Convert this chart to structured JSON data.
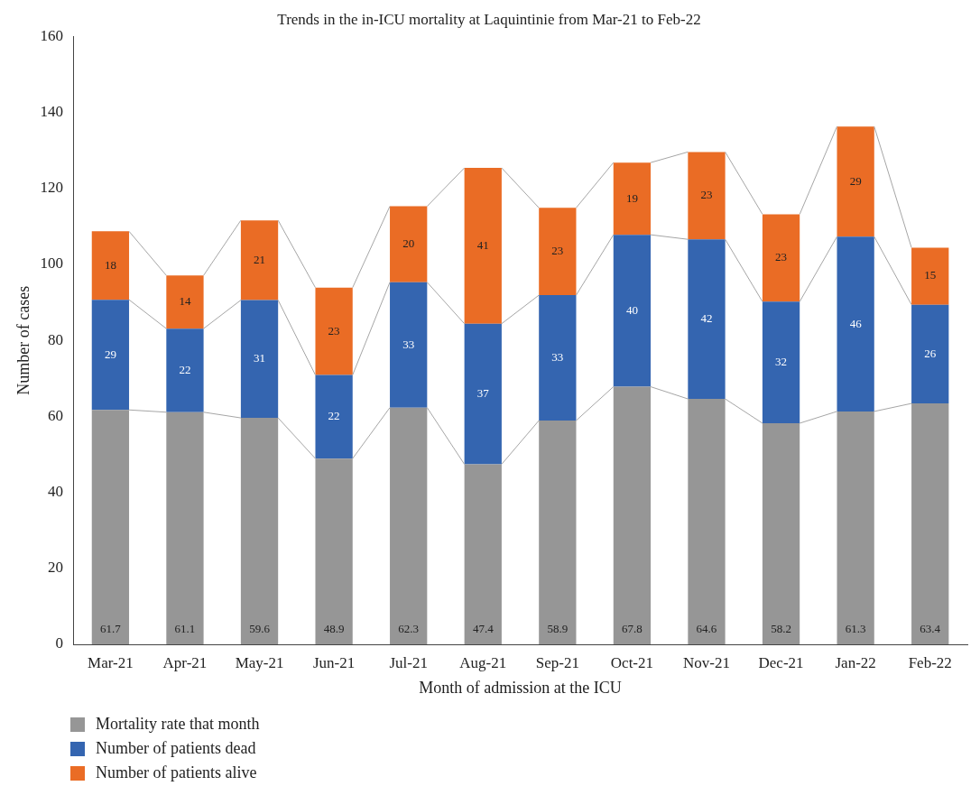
{
  "chart_data": {
    "type": "bar",
    "stacked": true,
    "title": "Trends in the in-ICU mortality at Laquintinie from Mar-21 to Feb-22",
    "xlabel": "Month of admission at the ICU",
    "ylabel": "Number of cases",
    "categories": [
      "Mar-21",
      "Apr-21",
      "May-21",
      "Jun-21",
      "Jul-21",
      "Aug-21",
      "Sep-21",
      "Oct-21",
      "Nov-21",
      "Dec-21",
      "Jan-22",
      "Feb-22"
    ],
    "series": [
      {
        "name": "Mortality rate that month",
        "color": "#969696",
        "values": [
          61.7,
          61.1,
          59.6,
          48.9,
          62.3,
          47.4,
          58.9,
          67.8,
          64.6,
          58.2,
          61.3,
          63.4
        ]
      },
      {
        "name": "Number of patients dead",
        "color": "#3465b0",
        "values": [
          29,
          22,
          31,
          22,
          33,
          37,
          33,
          40,
          42,
          32,
          46,
          26
        ]
      },
      {
        "name": "Number of patients alive",
        "color": "#ea6c25",
        "values": [
          18,
          14,
          21,
          23,
          20,
          41,
          23,
          19,
          23,
          23,
          29,
          15
        ]
      }
    ],
    "ylim": [
      0,
      160
    ],
    "yticks": [
      0,
      20,
      40,
      60,
      80,
      100,
      120,
      140,
      160
    ],
    "grid": false,
    "legend": "bottom left",
    "data_labels": true
  }
}
